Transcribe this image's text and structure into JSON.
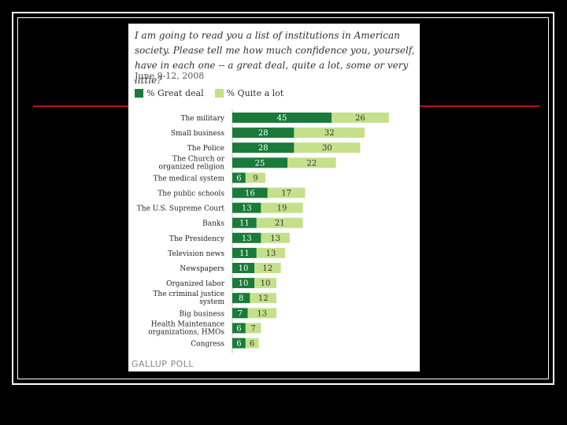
{
  "slide": {
    "question": "I am going to read you a list of institutions in American society. Please tell me how much confidence you, yourself, have in each one -- a great deal, quite a lot, some or very little?",
    "date": "June 9-12, 2008",
    "legend": {
      "great_deal": "% Great deal",
      "quite_a_lot": "% Quite a lot"
    },
    "footer": "GALLUP POLL"
  },
  "colors": {
    "great_deal": "#1a7a3a",
    "quite_a_lot": "#c5e08a",
    "accent_line": "#b8121b",
    "background": "#000000"
  },
  "chart_data": {
    "type": "bar",
    "orientation": "horizontal",
    "stacked": true,
    "categories": [
      "The military",
      "Small business",
      "The Police",
      "The Church or organized religion",
      "The medical system",
      "The public schools",
      "The U.S. Supreme Court",
      "Banks",
      "The Presidency",
      "Television news",
      "Newspapers",
      "Organized labor",
      "The criminal justice system",
      "Big business",
      "Health Maintenance organizations, HMOs",
      "Congress"
    ],
    "series": [
      {
        "name": "% Great deal",
        "values": [
          45,
          28,
          28,
          25,
          6,
          16,
          13,
          11,
          13,
          11,
          10,
          10,
          8,
          7,
          6,
          6
        ]
      },
      {
        "name": "% Quite a lot",
        "values": [
          26,
          32,
          30,
          22,
          9,
          17,
          19,
          21,
          13,
          13,
          12,
          10,
          12,
          13,
          7,
          6
        ]
      }
    ]
  }
}
